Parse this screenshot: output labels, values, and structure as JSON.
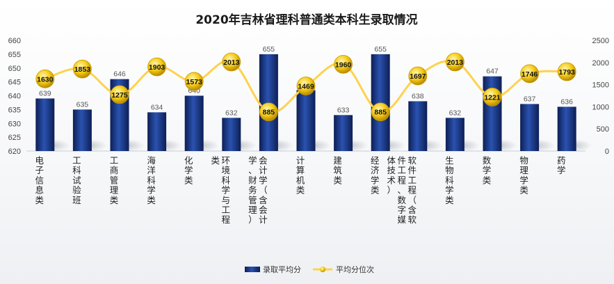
{
  "chart_data": {
    "type": "bar",
    "title": "2020年吉林省理科普通类本科生录取情况",
    "categories": [
      "电子信息类",
      "工科试验班",
      "工商管理类",
      "海洋科学类",
      "化学类",
      "环境科学与工程类",
      "会计学（含会计学、财务管理）",
      "计算机类",
      "建筑类",
      "经济学类",
      "软件工程（含软件工程、数字媒体技术）",
      "生物科学类",
      "数学类",
      "物理学类",
      "药学"
    ],
    "series": [
      {
        "name": "录取平均分",
        "type": "bar",
        "axis": "left",
        "values": [
          639,
          635,
          646,
          634,
          640,
          632,
          655,
          642,
          633,
          655,
          638,
          632,
          647,
          637,
          636
        ]
      },
      {
        "name": "平均分位次",
        "type": "line",
        "axis": "right",
        "values": [
          1630,
          1853,
          1275,
          1903,
          1573,
          2013,
          885,
          1469,
          1960,
          885,
          1697,
          2013,
          1221,
          1746,
          1793
        ]
      }
    ],
    "y_left": {
      "range": [
        620,
        660
      ],
      "ticks": [
        620,
        625,
        630,
        635,
        640,
        645,
        650,
        655,
        660
      ]
    },
    "y_right": {
      "range": [
        0,
        2500
      ],
      "ticks": [
        0,
        500,
        1000,
        1500,
        2000,
        2500
      ]
    },
    "legend_position": "bottom",
    "grid": false,
    "colors": {
      "bar": "#1f3f8f",
      "bar_dark": "#0d1f55",
      "line": "#ffd24d",
      "marker": "#f2c500"
    }
  }
}
